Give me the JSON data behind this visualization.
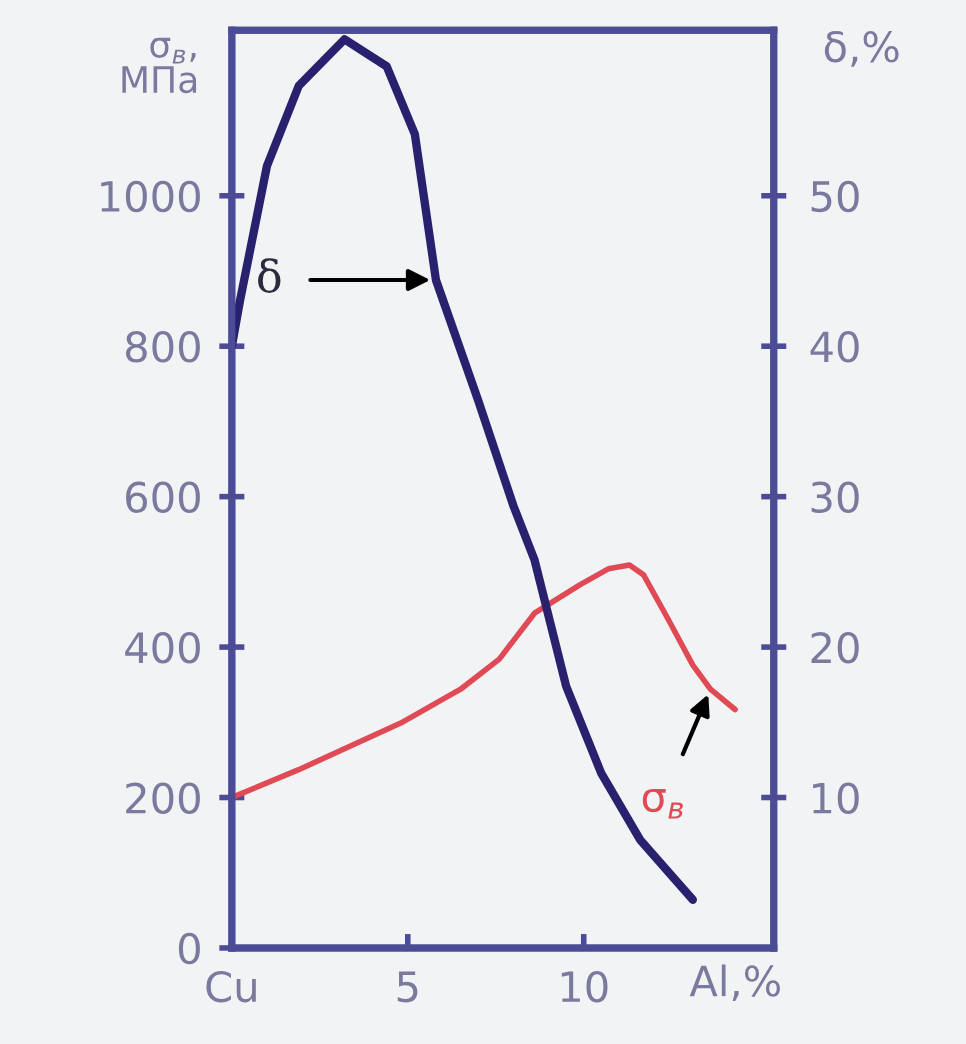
{
  "chart_data": {
    "type": "line",
    "ylabel": "σ$_{в}$,\nМПа",
    "y2label": "δ,%",
    "xlabel": "Al,%",
    "xlim": [
      0,
      15.4
    ],
    "xticks": [
      {
        "value": 0,
        "label": "Cu"
      },
      5,
      10
    ],
    "ylim": [
      0,
      1220
    ],
    "yticks": [
      0,
      200,
      400,
      600,
      800,
      1000
    ],
    "y2lim": [
      0,
      61
    ],
    "y2ticks": [
      10,
      20,
      30,
      40,
      50
    ],
    "grid": false,
    "legend": false,
    "marker": "none",
    "line_style": "solid",
    "series": [
      {
        "color": "#28226e",
        "axis": "y2",
        "x": [
          0,
          0.23,
          1.0,
          1.9,
          3.2,
          4.4,
          5.2,
          5.8,
          7.0,
          8.0,
          8.6,
          9.5,
          10.5,
          11.6,
          13.1
        ],
        "values": [
          40,
          43,
          52,
          57.3,
          60.4,
          58.6,
          54.1,
          44.4,
          36.4,
          29.4,
          25.8,
          17.4,
          11.6,
          7.2,
          3.2
        ]
      },
      {
        "color": "#e04a55",
        "axis": "y",
        "x": [
          0,
          1.9,
          4.8,
          6.5,
          7.6,
          8.6,
          9.9,
          10.7,
          11.3,
          11.7,
          12.4,
          13.1,
          13.6,
          14.3
        ],
        "values": [
          200,
          237,
          299,
          344,
          384,
          445,
          483,
          504,
          509,
          496,
          437,
          376,
          344,
          317
        ]
      }
    ],
    "annotations": [
      {
        "text": "δ",
        "x": 5.8,
        "y": 888
      },
      {
        "text": "σ$_{в}$",
        "x": 13.6,
        "y": 344
      }
    ]
  }
}
